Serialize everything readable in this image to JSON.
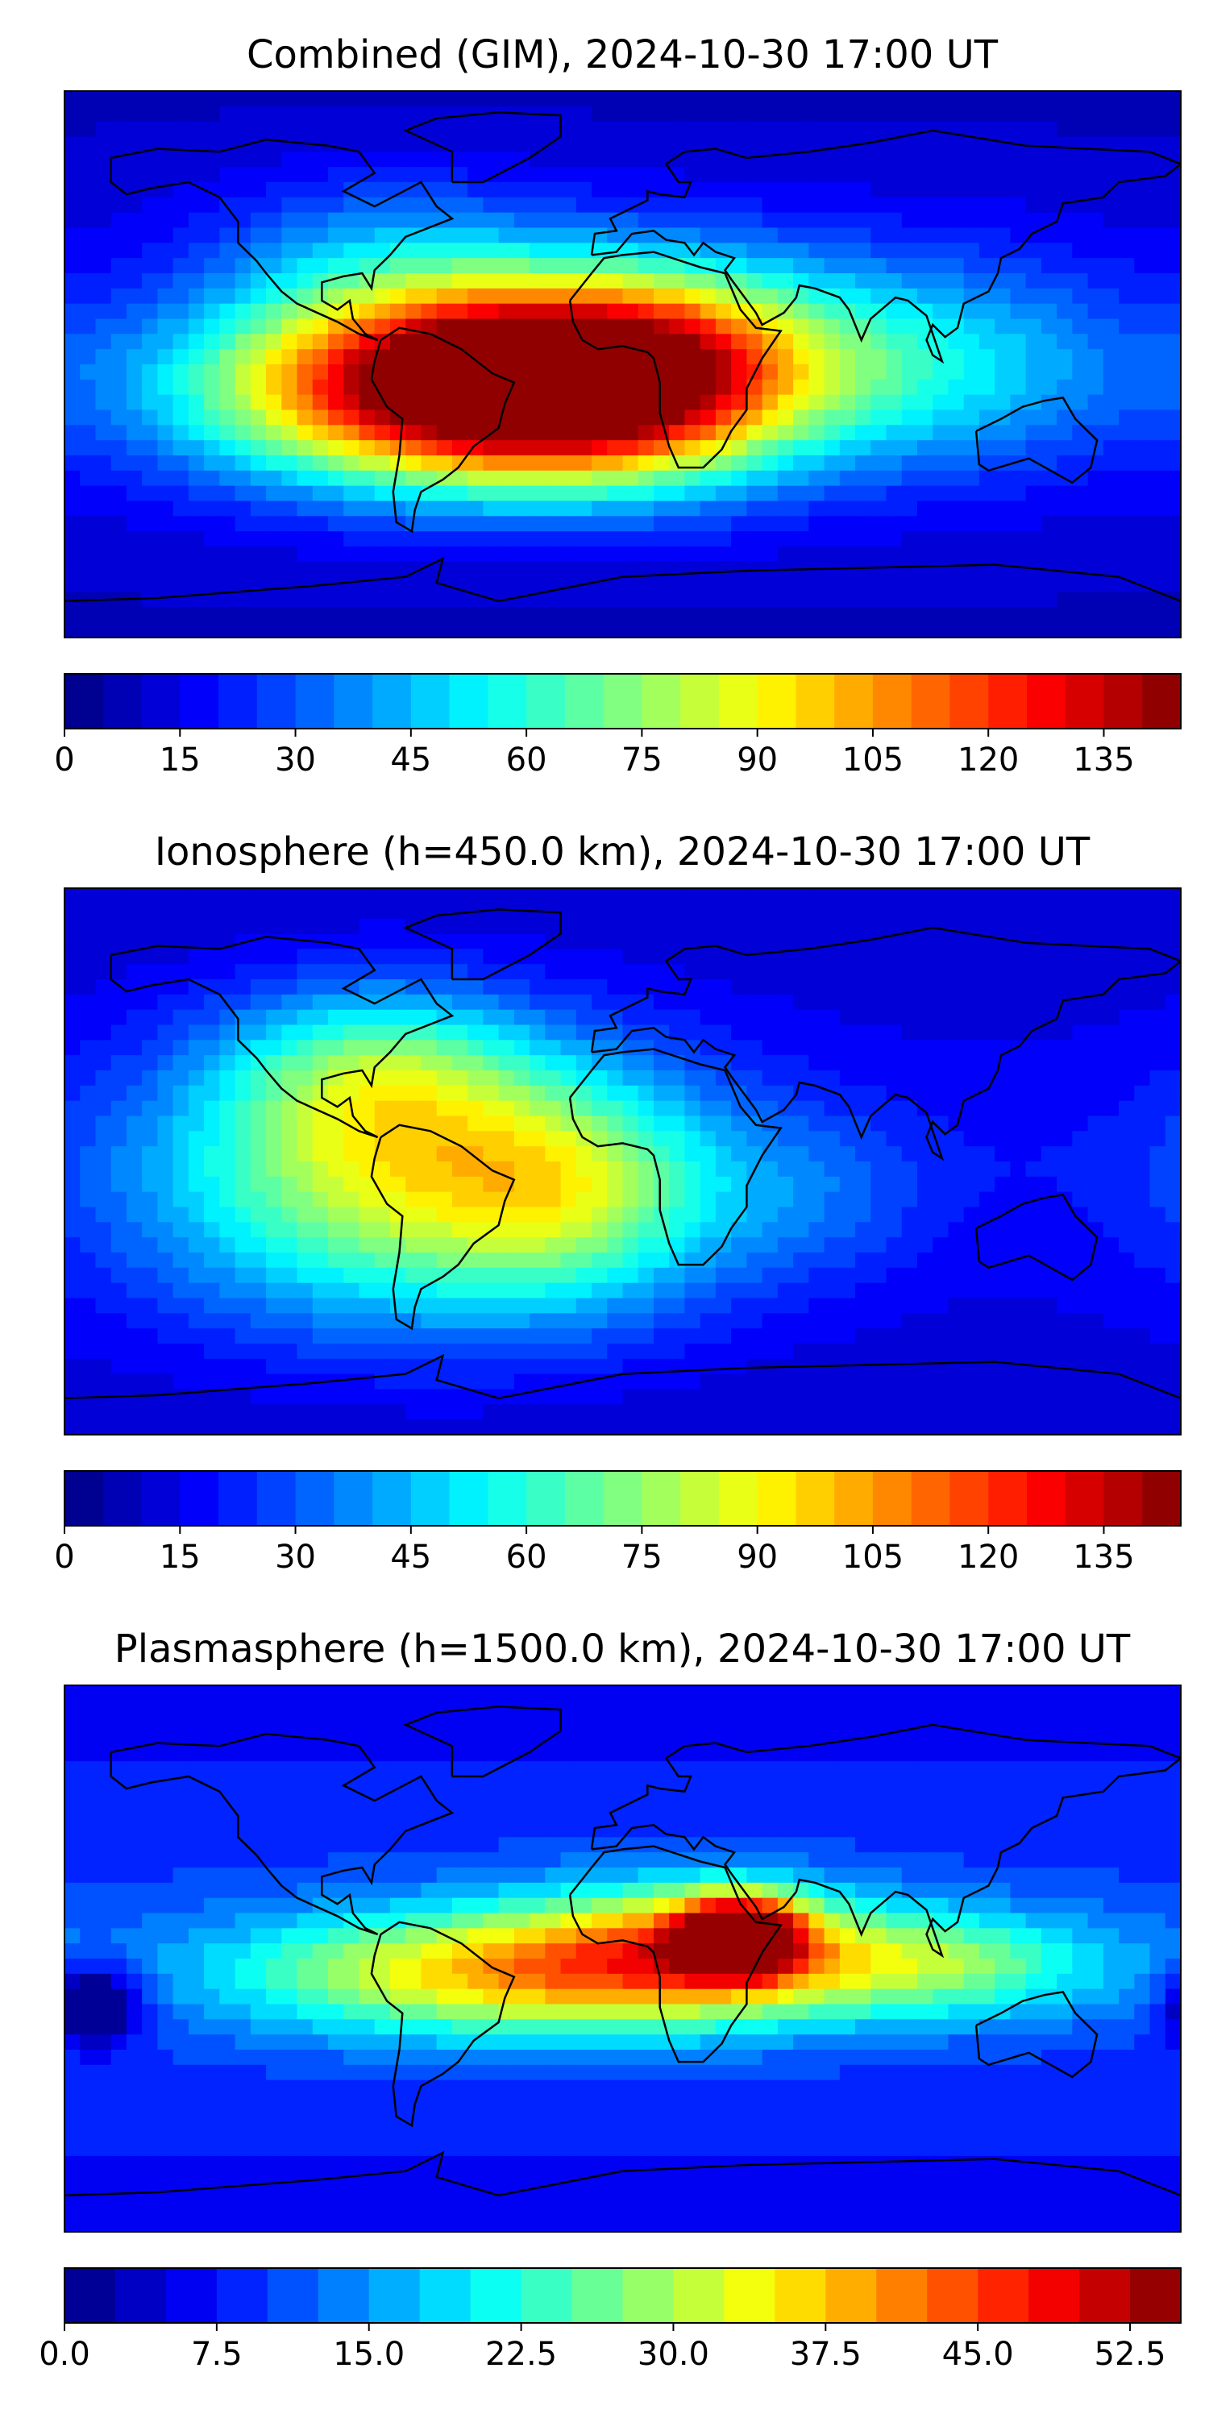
{
  "chart_data": [
    {
      "type": "heatmap",
      "title": "Combined (GIM), 2024-10-30 17:00 UT",
      "colorbar": {
        "vmin": 0,
        "vmax": 145,
        "levels": 29,
        "ticks": [
          "0",
          "15",
          "30",
          "45",
          "60",
          "75",
          "90",
          "105",
          "120",
          "135"
        ],
        "tick_values": [
          0,
          15,
          30,
          45,
          60,
          75,
          90,
          105,
          120,
          135
        ]
      },
      "features": [
        {
          "lon": -62,
          "lat": -8,
          "value": 128,
          "spread_lon": 55,
          "spread_lat": 22
        },
        {
          "lon": -20,
          "lat": -5,
          "value": 95,
          "spread_lon": 40,
          "spread_lat": 22
        },
        {
          "lon": 20,
          "lat": 0,
          "value": 70,
          "spread_lon": 35,
          "spread_lat": 25
        },
        {
          "lon": 95,
          "lat": 0,
          "value": 55,
          "spread_lon": 45,
          "spread_lat": 25
        },
        {
          "lon": -75,
          "lat": 35,
          "value": 40,
          "spread_lon": 40,
          "spread_lat": 20
        }
      ],
      "background_value": 16
    },
    {
      "type": "heatmap",
      "title": "Ionosphere  (h=450.0 km), 2024-10-30 17:00 UT",
      "colorbar": {
        "vmin": 0,
        "vmax": 145,
        "levels": 29,
        "ticks": [
          "0",
          "15",
          "30",
          "45",
          "60",
          "75",
          "90",
          "105",
          "120",
          "135"
        ],
        "tick_values": [
          0,
          15,
          30,
          45,
          60,
          75,
          90,
          105,
          120,
          135
        ]
      },
      "features": [
        {
          "lon": -65,
          "lat": -8,
          "value": 84,
          "spread_lon": 60,
          "spread_lat": 32
        },
        {
          "lon": -80,
          "lat": 30,
          "value": 55,
          "spread_lon": 35,
          "spread_lat": 20
        },
        {
          "lon": -15,
          "lat": -10,
          "value": 45,
          "spread_lon": 30,
          "spread_lat": 25
        },
        {
          "lon": 60,
          "lat": -12,
          "value": 30,
          "spread_lon": 30,
          "spread_lat": 20
        }
      ],
      "background_value": 18
    },
    {
      "type": "heatmap",
      "title": "Plasmasphere (h=1500.0 km), 2024-10-30 17:00 UT",
      "colorbar": {
        "vmin": 0,
        "vmax": 55,
        "levels": 22,
        "ticks": [
          "0.0",
          "7.5",
          "15.0",
          "22.5",
          "30.0",
          "37.5",
          "45.0",
          "52.5"
        ],
        "tick_values": [
          0,
          7.5,
          15,
          22.5,
          30,
          37.5,
          45,
          52.5
        ]
      },
      "features": [
        {
          "lon": 38,
          "lat": 8,
          "value": 48,
          "spread_lon": 14,
          "spread_lat": 9
        },
        {
          "lon": 20,
          "lat": 2,
          "value": 36,
          "spread_lon": 40,
          "spread_lat": 16
        },
        {
          "lon": -50,
          "lat": -5,
          "value": 34,
          "spread_lon": 55,
          "spread_lat": 15
        },
        {
          "lon": 100,
          "lat": -2,
          "value": 28,
          "spread_lon": 40,
          "spread_lat": 13
        },
        {
          "lon": -170,
          "lat": -15,
          "value": -6,
          "spread_lon": 10,
          "spread_lat": 9
        }
      ],
      "background_value": 11
    }
  ]
}
